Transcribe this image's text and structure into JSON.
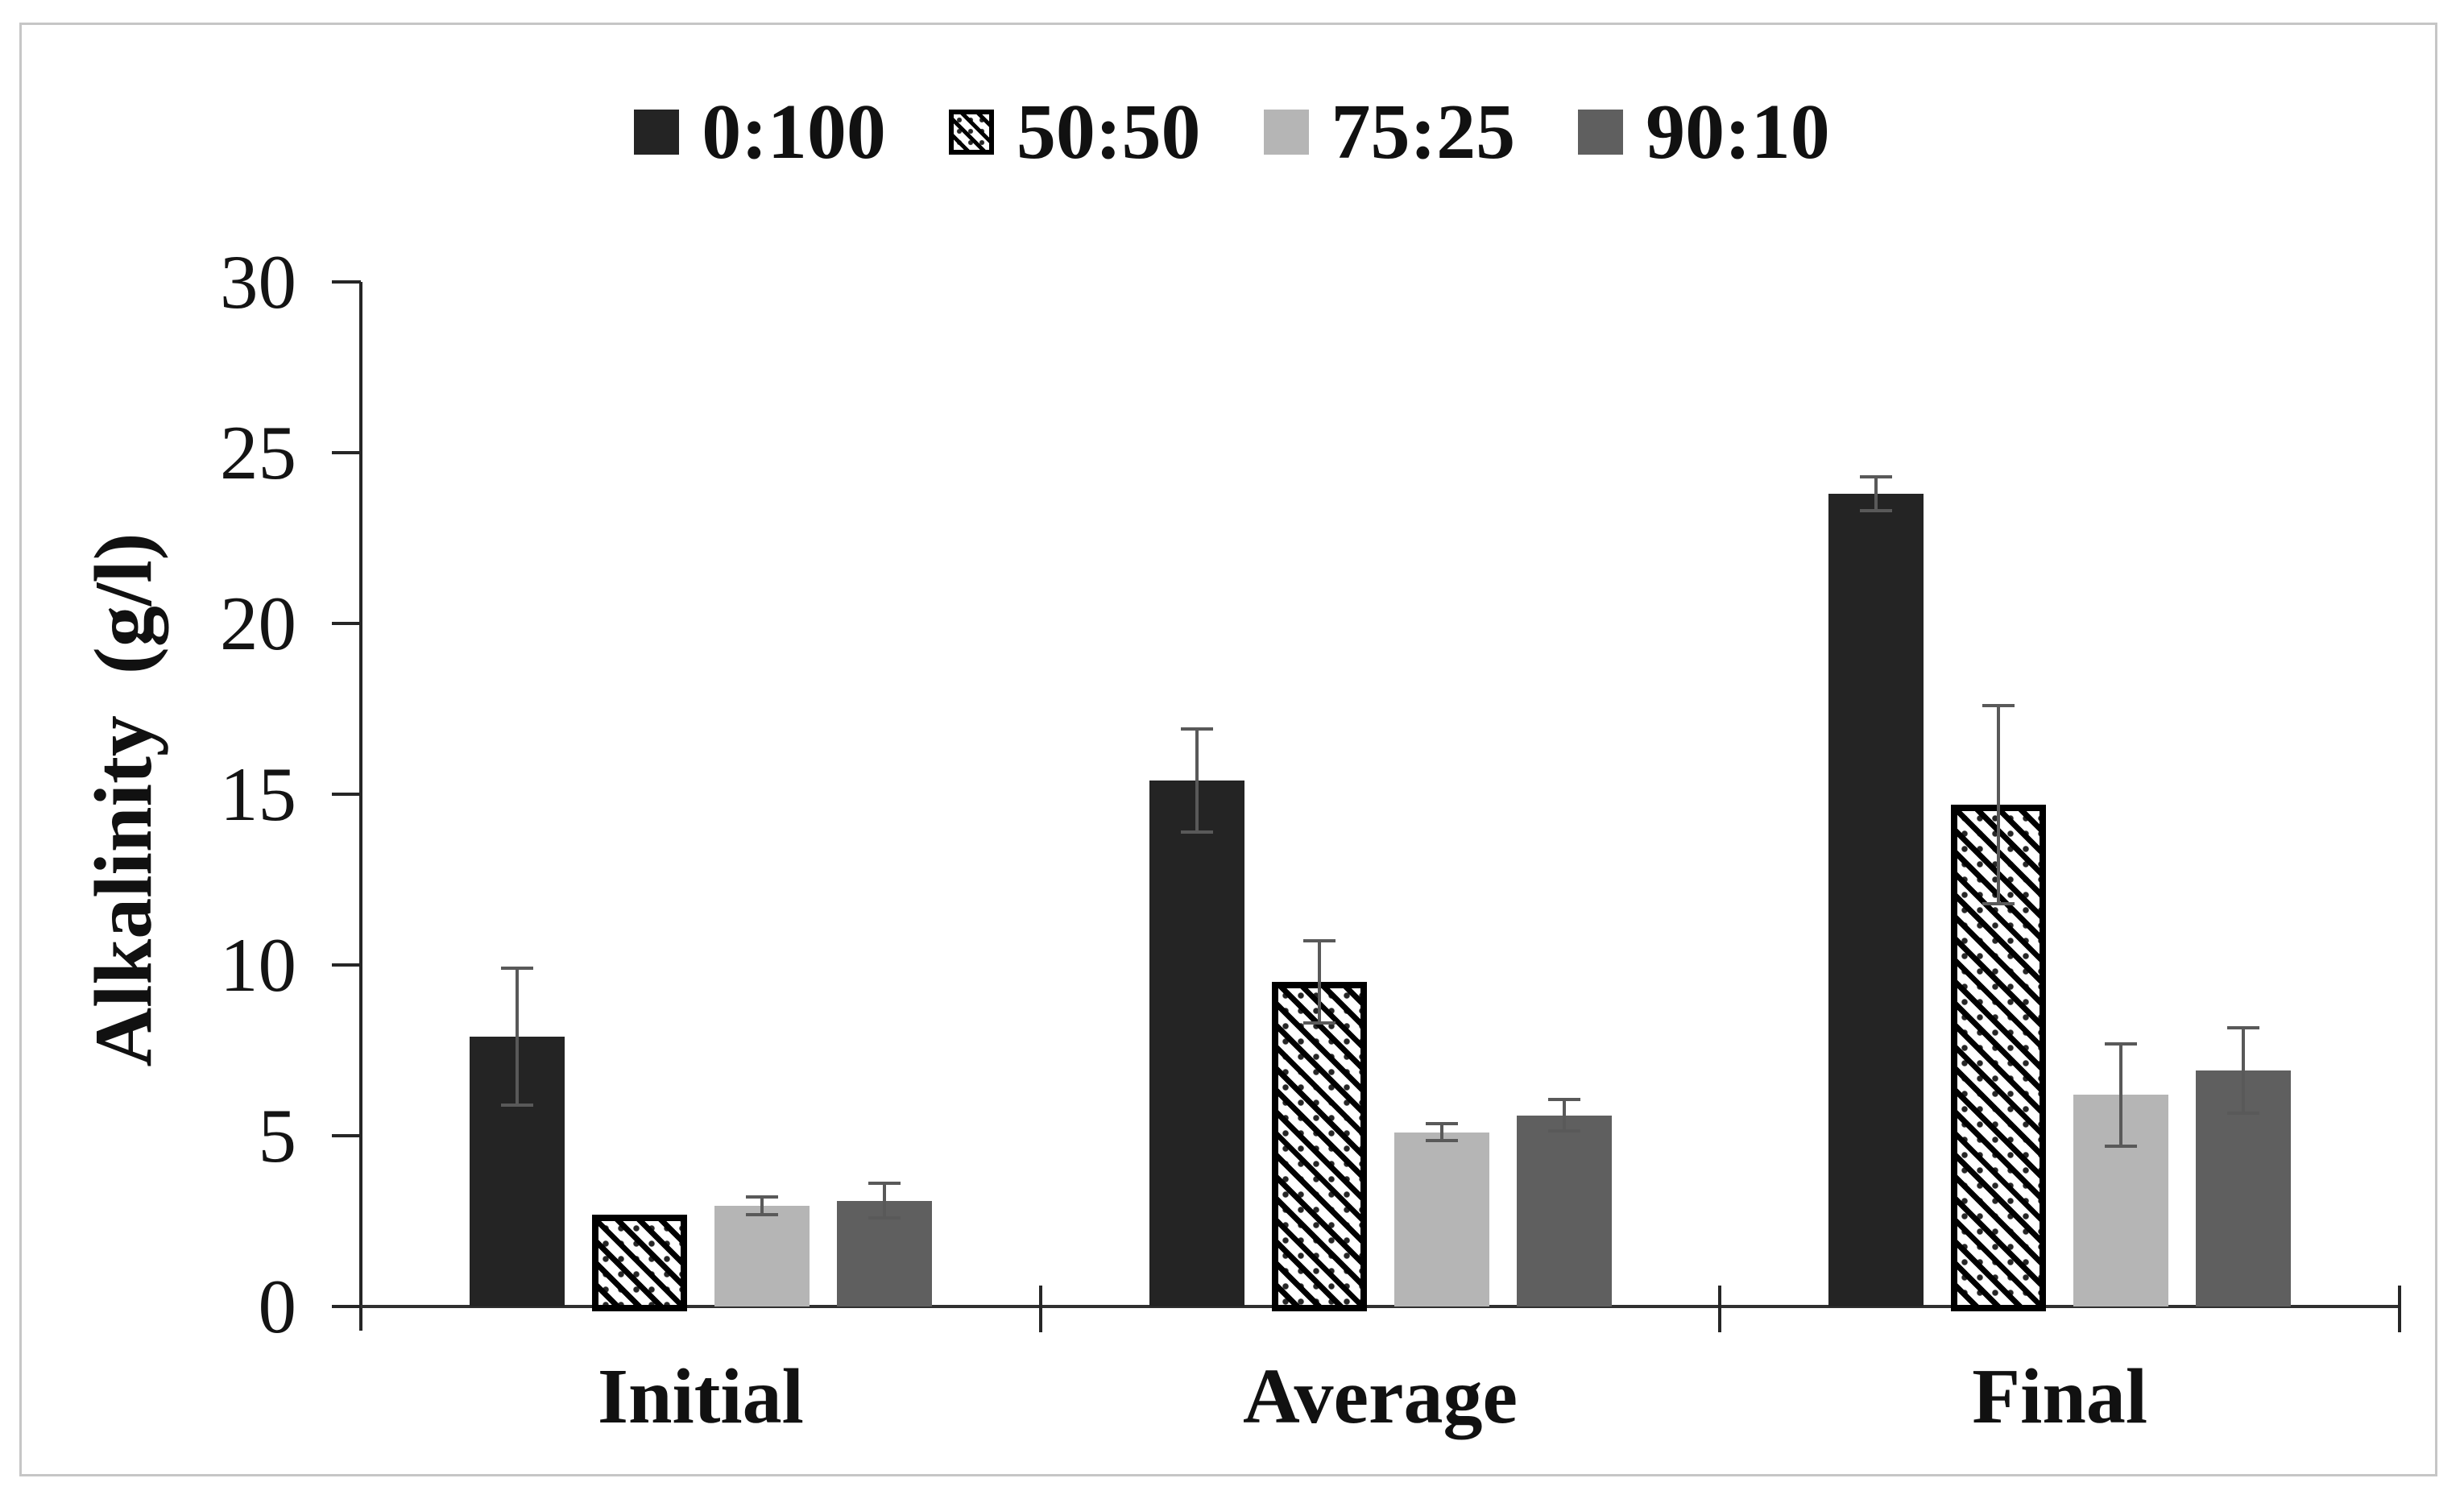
{
  "figure": {
    "background": "#ffffff",
    "frame_border_color": "#c6c6c6"
  },
  "legend": {
    "position": "top",
    "items": [
      {
        "label": "0:100",
        "swatch": "solid-black"
      },
      {
        "label": "50:50",
        "swatch": "hatched-diagonal"
      },
      {
        "label": "75:25",
        "swatch": "solid-light-gray"
      },
      {
        "label": "90:10",
        "swatch": "solid-dark-gray"
      }
    ]
  },
  "chart_data": {
    "type": "bar",
    "title": "",
    "xlabel": "",
    "ylabel": "Alkalinity  (g/l)",
    "categories": [
      "Initial",
      "Average",
      "Final"
    ],
    "series": [
      {
        "name": "0:100",
        "style": "solid",
        "color": "#242424",
        "values": [
          7.9,
          15.4,
          23.8
        ],
        "errors": [
          2.0,
          1.5,
          0.5
        ]
      },
      {
        "name": "50:50",
        "style": "hatch",
        "color": "#ffffff",
        "hatch_color": "#000000",
        "values": [
          2.7,
          9.5,
          14.7
        ],
        "errors": [
          0,
          1.2,
          2.9
        ]
      },
      {
        "name": "75:25",
        "style": "solid",
        "color": "#b5b5b5",
        "values": [
          2.95,
          5.1,
          6.2
        ],
        "errors": [
          0.25,
          0.25,
          1.5
        ]
      },
      {
        "name": "90:10",
        "style": "solid",
        "color": "#5f5f5f",
        "values": [
          3.1,
          5.6,
          6.9
        ],
        "errors": [
          0.5,
          0.45,
          1.25
        ]
      }
    ],
    "ylim": [
      0,
      30
    ],
    "yticks": [
      0,
      5,
      10,
      15,
      20,
      25,
      30
    ],
    "grid": false,
    "legend_position": "top",
    "error_bars": true,
    "error_bar_color": "#595959"
  }
}
